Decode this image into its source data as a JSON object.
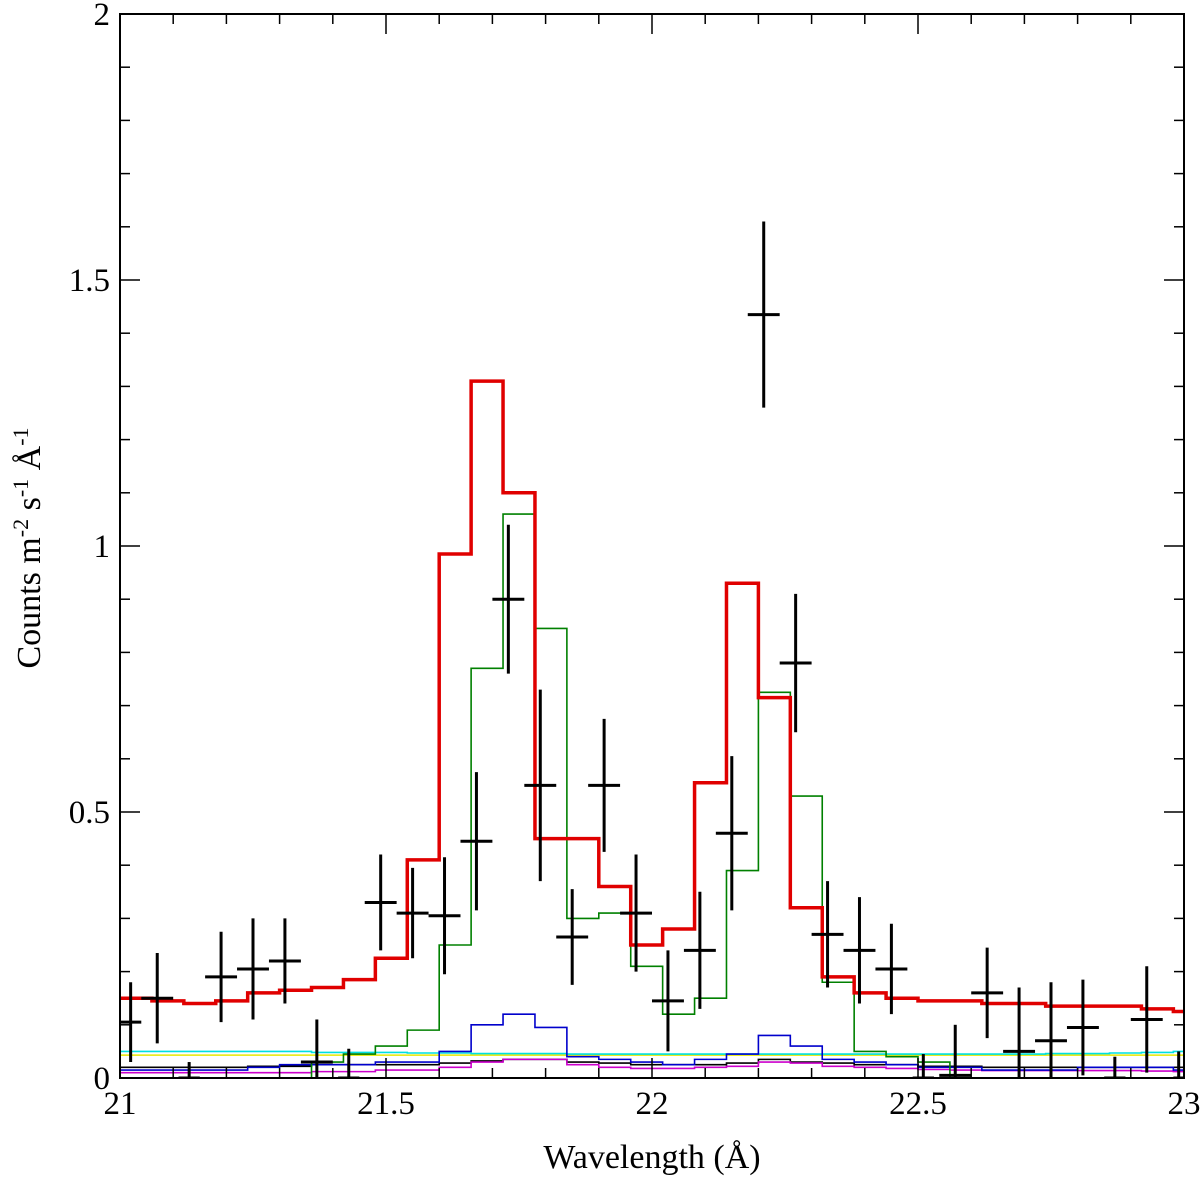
{
  "chart_data": {
    "type": "line",
    "xlabel": "Wavelength (Å)",
    "ylabel": {
      "base": "Counts m",
      "exp1": "-2",
      "mid1": " s",
      "exp2": "-1",
      "mid2": " Å",
      "exp3": "-1"
    },
    "xlim": [
      21,
      23
    ],
    "ylim": [
      0,
      2
    ],
    "grid": false,
    "x_ticks": [
      {
        "value": 21,
        "label": "21"
      },
      {
        "value": 21.5,
        "label": "21.5"
      },
      {
        "value": 22,
        "label": "22"
      },
      {
        "value": 22.5,
        "label": "22.5"
      },
      {
        "value": 23,
        "label": "23"
      }
    ],
    "y_ticks": [
      {
        "value": 0,
        "label": "0"
      },
      {
        "value": 0.5,
        "label": "0.5"
      },
      {
        "value": 1,
        "label": "1"
      },
      {
        "value": 1.5,
        "label": "1.5"
      },
      {
        "value": 2,
        "label": "2"
      }
    ],
    "x_minor_step": 0.1,
    "y_minor_step": 0.1,
    "data_points": {
      "name": "Observed data",
      "color": "#000000",
      "points": [
        {
          "x": 21.02,
          "y": 0.105,
          "xerr": 0.02,
          "yerr": 0.075
        },
        {
          "x": 21.07,
          "y": 0.15,
          "xerr": 0.03,
          "yerr": 0.085
        },
        {
          "x": 21.13,
          "y": 0.0,
          "xerr": 0.02,
          "yerr": 0.03
        },
        {
          "x": 21.19,
          "y": 0.19,
          "xerr": 0.03,
          "yerr": 0.085
        },
        {
          "x": 21.25,
          "y": 0.205,
          "xerr": 0.03,
          "yerr": 0.095
        },
        {
          "x": 21.31,
          "y": 0.22,
          "xerr": 0.03,
          "yerr": 0.08
        },
        {
          "x": 21.37,
          "y": 0.03,
          "xerr": 0.03,
          "yerr": 0.08
        },
        {
          "x": 21.43,
          "y": 0.0,
          "xerr": 0.02,
          "yerr": 0.055
        },
        {
          "x": 21.49,
          "y": 0.33,
          "xerr": 0.03,
          "yerr": 0.09
        },
        {
          "x": 21.55,
          "y": 0.31,
          "xerr": 0.03,
          "yerr": 0.085
        },
        {
          "x": 21.61,
          "y": 0.305,
          "xerr": 0.03,
          "yerr": 0.11
        },
        {
          "x": 21.67,
          "y": 0.445,
          "xerr": 0.03,
          "yerr": 0.13
        },
        {
          "x": 21.73,
          "y": 0.9,
          "xerr": 0.03,
          "yerr": 0.14
        },
        {
          "x": 21.79,
          "y": 0.55,
          "xerr": 0.03,
          "yerr": 0.18
        },
        {
          "x": 21.85,
          "y": 0.265,
          "xerr": 0.03,
          "yerr": 0.09
        },
        {
          "x": 21.91,
          "y": 0.55,
          "xerr": 0.03,
          "yerr": 0.125
        },
        {
          "x": 21.97,
          "y": 0.31,
          "xerr": 0.03,
          "yerr": 0.11
        },
        {
          "x": 22.03,
          "y": 0.145,
          "xerr": 0.03,
          "yerr": 0.095
        },
        {
          "x": 22.09,
          "y": 0.24,
          "xerr": 0.03,
          "yerr": 0.11
        },
        {
          "x": 22.15,
          "y": 0.46,
          "xerr": 0.03,
          "yerr": 0.145
        },
        {
          "x": 22.21,
          "y": 1.435,
          "xerr": 0.03,
          "yerr": 0.175
        },
        {
          "x": 22.27,
          "y": 0.78,
          "xerr": 0.03,
          "yerr": 0.13
        },
        {
          "x": 22.33,
          "y": 0.27,
          "xerr": 0.03,
          "yerr": 0.1
        },
        {
          "x": 22.39,
          "y": 0.24,
          "xerr": 0.03,
          "yerr": 0.1
        },
        {
          "x": 22.45,
          "y": 0.205,
          "xerr": 0.03,
          "yerr": 0.085
        },
        {
          "x": 22.51,
          "y": 0.0,
          "xerr": 0.02,
          "yerr": 0.045
        },
        {
          "x": 22.57,
          "y": 0.005,
          "xerr": 0.03,
          "yerr": 0.095
        },
        {
          "x": 22.63,
          "y": 0.16,
          "xerr": 0.03,
          "yerr": 0.085
        },
        {
          "x": 22.69,
          "y": 0.05,
          "xerr": 0.03,
          "yerr": 0.12
        },
        {
          "x": 22.75,
          "y": 0.07,
          "xerr": 0.03,
          "yerr": 0.11
        },
        {
          "x": 22.81,
          "y": 0.095,
          "xerr": 0.03,
          "yerr": 0.09
        },
        {
          "x": 22.87,
          "y": 0.0,
          "xerr": 0.02,
          "yerr": 0.04
        },
        {
          "x": 22.93,
          "y": 0.11,
          "xerr": 0.03,
          "yerr": 0.1
        },
        {
          "x": 22.99,
          "y": 0.0,
          "xerr": 0.01,
          "yerr": 0.05
        }
      ]
    },
    "series": [
      {
        "name": "Total model",
        "color": "#e00000",
        "bin_edges": [
          21.0,
          21.06,
          21.12,
          21.18,
          21.24,
          21.3,
          21.36,
          21.42,
          21.48,
          21.54,
          21.6,
          21.66,
          21.72,
          21.78,
          21.84,
          21.9,
          21.96,
          22.02,
          22.08,
          22.14,
          22.2,
          22.26,
          22.32,
          22.38,
          22.44,
          22.5,
          22.56,
          22.62,
          22.68,
          22.74,
          22.8,
          22.86,
          22.92,
          22.98,
          23.0
        ],
        "values": [
          0.15,
          0.145,
          0.14,
          0.145,
          0.16,
          0.165,
          0.17,
          0.185,
          0.225,
          0.41,
          0.985,
          1.31,
          1.1,
          0.45,
          0.45,
          0.36,
          0.25,
          0.28,
          0.555,
          0.93,
          0.715,
          0.32,
          0.19,
          0.16,
          0.15,
          0.145,
          0.145,
          0.14,
          0.14,
          0.135,
          0.135,
          0.135,
          0.13,
          0.125
        ]
      },
      {
        "name": "Component 1",
        "color": "#008000",
        "bin_edges": [
          21.0,
          21.06,
          21.12,
          21.18,
          21.24,
          21.3,
          21.36,
          21.42,
          21.48,
          21.54,
          21.6,
          21.66,
          21.72,
          21.78,
          21.84,
          21.9,
          21.96,
          22.02,
          22.08,
          22.14,
          22.2,
          22.26,
          22.32,
          22.38,
          22.44,
          22.5,
          22.56,
          22.62,
          22.68,
          22.74,
          22.8,
          22.86,
          22.92,
          22.98,
          23.0
        ],
        "values": [
          0.0,
          0.0,
          0.0,
          0.0,
          0.0,
          0.0,
          0.03,
          0.045,
          0.06,
          0.09,
          0.25,
          0.77,
          1.06,
          0.845,
          0.3,
          0.31,
          0.21,
          0.12,
          0.15,
          0.39,
          0.725,
          0.53,
          0.18,
          0.05,
          0.04,
          0.03,
          0.0,
          0.0,
          0.0,
          0.0,
          0.0,
          0.0,
          0.0,
          0.0
        ]
      },
      {
        "name": "Component 2",
        "color": "#0000cc",
        "bin_edges": [
          21.0,
          21.06,
          21.12,
          21.18,
          21.24,
          21.3,
          21.36,
          21.42,
          21.48,
          21.54,
          21.6,
          21.66,
          21.72,
          21.78,
          21.84,
          21.9,
          21.96,
          22.02,
          22.08,
          22.14,
          22.2,
          22.26,
          22.32,
          22.38,
          22.44,
          22.5,
          22.56,
          22.62,
          22.68,
          22.74,
          22.8,
          22.86,
          22.92,
          22.98,
          23.0
        ],
        "values": [
          0.015,
          0.015,
          0.015,
          0.015,
          0.02,
          0.025,
          0.025,
          0.025,
          0.03,
          0.03,
          0.05,
          0.1,
          0.12,
          0.095,
          0.04,
          0.035,
          0.03,
          0.025,
          0.035,
          0.045,
          0.08,
          0.06,
          0.035,
          0.03,
          0.025,
          0.02,
          0.02,
          0.015,
          0.015,
          0.015,
          0.02,
          0.02,
          0.02,
          0.015
        ]
      },
      {
        "name": "Component 3",
        "color": "#00e0e0",
        "bin_edges": [
          21.0,
          21.06,
          21.12,
          21.18,
          21.24,
          21.3,
          21.36,
          21.42,
          21.48,
          21.54,
          21.6,
          21.66,
          21.72,
          21.78,
          21.84,
          21.9,
          21.96,
          22.02,
          22.08,
          22.14,
          22.2,
          22.26,
          22.32,
          22.38,
          22.44,
          22.5,
          22.56,
          22.62,
          22.68,
          22.74,
          22.8,
          22.86,
          22.92,
          22.98,
          23.0
        ],
        "values": [
          0.05,
          0.05,
          0.05,
          0.05,
          0.05,
          0.05,
          0.048,
          0.048,
          0.048,
          0.047,
          0.047,
          0.046,
          0.046,
          0.046,
          0.045,
          0.045,
          0.045,
          0.045,
          0.045,
          0.045,
          0.045,
          0.045,
          0.045,
          0.045,
          0.045,
          0.045,
          0.045,
          0.045,
          0.045,
          0.046,
          0.046,
          0.047,
          0.048,
          0.05
        ]
      },
      {
        "name": "Component 4",
        "color": "#e8e800",
        "bin_edges": [
          21.0,
          23.0
        ],
        "values": [
          0.043
        ]
      },
      {
        "name": "Component 5",
        "color": "#cc00cc",
        "bin_edges": [
          21.0,
          21.06,
          21.12,
          21.18,
          21.24,
          21.3,
          21.36,
          21.42,
          21.48,
          21.54,
          21.6,
          21.66,
          21.72,
          21.78,
          21.84,
          21.9,
          21.96,
          22.02,
          22.08,
          22.14,
          22.2,
          22.26,
          22.32,
          22.38,
          22.44,
          22.5,
          22.56,
          22.62,
          22.68,
          22.74,
          22.8,
          22.86,
          22.92,
          22.98,
          23.0
        ],
        "values": [
          0.01,
          0.01,
          0.01,
          0.01,
          0.01,
          0.01,
          0.012,
          0.012,
          0.015,
          0.015,
          0.02,
          0.03,
          0.035,
          0.035,
          0.025,
          0.02,
          0.018,
          0.018,
          0.02,
          0.022,
          0.03,
          0.028,
          0.022,
          0.02,
          0.018,
          0.016,
          0.015,
          0.014,
          0.014,
          0.014,
          0.014,
          0.014,
          0.013,
          0.012
        ]
      },
      {
        "name": "Component 6",
        "color": "#000000",
        "bin_edges": [
          21.0,
          21.06,
          21.12,
          21.18,
          21.24,
          21.3,
          21.36,
          21.42,
          21.48,
          21.54,
          21.6,
          21.66,
          21.72,
          21.78,
          21.84,
          21.9,
          21.96,
          22.02,
          22.08,
          22.14,
          22.2,
          22.26,
          22.32,
          22.38,
          22.44,
          22.5,
          22.56,
          22.62,
          22.68,
          22.74,
          22.8,
          22.86,
          22.92,
          22.98,
          23.0
        ],
        "values": [
          0.02,
          0.02,
          0.02,
          0.02,
          0.022,
          0.022,
          0.025,
          0.025,
          0.025,
          0.025,
          0.028,
          0.032,
          0.035,
          0.035,
          0.03,
          0.028,
          0.025,
          0.025,
          0.025,
          0.028,
          0.035,
          0.03,
          0.028,
          0.025,
          0.025,
          0.022,
          0.022,
          0.02,
          0.02,
          0.02,
          0.02,
          0.02,
          0.02,
          0.02
        ]
      }
    ]
  }
}
